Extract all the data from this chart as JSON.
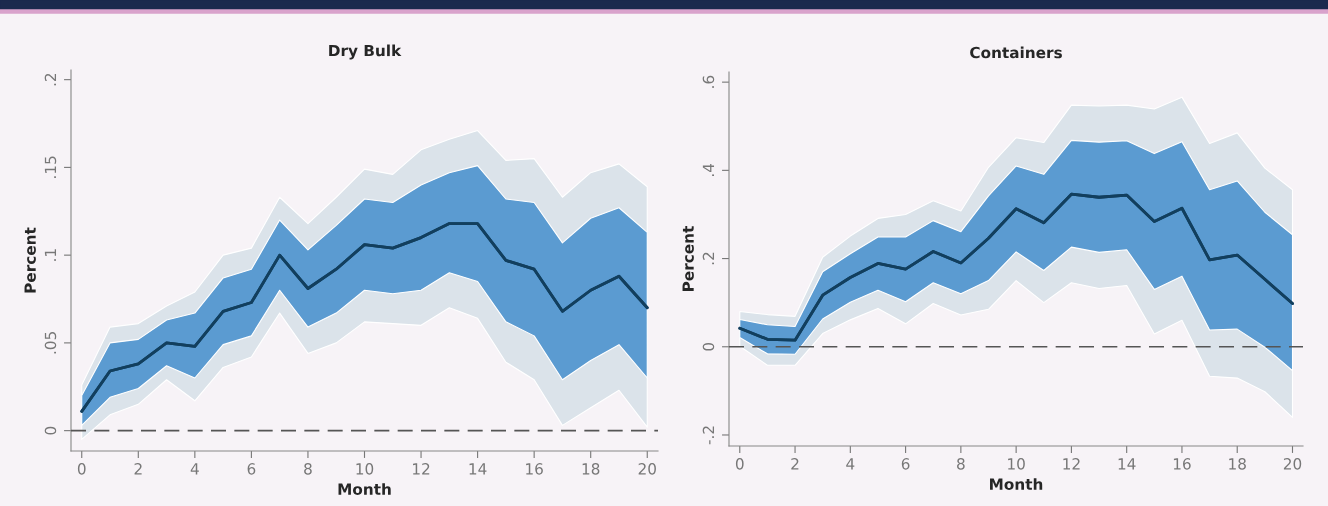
{
  "chart_data": [
    {
      "type": "line",
      "title": "Dry Bulk",
      "xlabel": "Month",
      "ylabel": "Percent",
      "x": [
        0,
        1,
        2,
        3,
        4,
        5,
        6,
        7,
        8,
        9,
        10,
        11,
        12,
        13,
        14,
        15,
        16,
        17,
        18,
        19,
        20
      ],
      "series": [
        {
          "color": "#123f5e",
          "values": [
            0.011,
            0.034,
            0.038,
            0.05,
            0.048,
            0.068,
            0.073,
            0.1,
            0.081,
            0.092,
            0.106,
            0.104,
            0.11,
            0.118,
            0.118,
            0.097,
            0.092,
            0.068,
            0.08,
            0.088,
            0.07
          ],
          "lower": [
            -0.005,
            0.009,
            0.015,
            0.029,
            0.017,
            0.036,
            0.042,
            0.067,
            0.044,
            0.05,
            0.062,
            0.061,
            0.06,
            0.07,
            0.064,
            0.039,
            0.029,
            0.003,
            0.013,
            0.023,
            0.002
          ],
          "upper": [
            0.026,
            0.059,
            0.061,
            0.071,
            0.079,
            0.1,
            0.104,
            0.133,
            0.118,
            0.133,
            0.149,
            0.146,
            0.16,
            0.166,
            0.171,
            0.154,
            0.155,
            0.133,
            0.147,
            0.152,
            0.139
          ]
        },
        {
          "color": "#123f5e",
          "values": [
            0.011,
            0.034,
            0.038,
            0.05,
            0.048,
            0.068,
            0.073,
            0.1,
            0.081,
            0.092,
            0.106,
            0.104,
            0.11,
            0.118,
            0.118,
            0.097,
            0.092,
            0.068,
            0.08,
            0.088,
            0.07
          ],
          "lower": [
            0.003,
            0.019,
            0.024,
            0.037,
            0.03,
            0.049,
            0.054,
            0.08,
            0.059,
            0.067,
            0.08,
            0.078,
            0.08,
            0.09,
            0.085,
            0.062,
            0.054,
            0.029,
            0.04,
            0.049,
            0.03
          ],
          "upper": [
            0.02,
            0.05,
            0.052,
            0.063,
            0.067,
            0.087,
            0.092,
            0.12,
            0.103,
            0.117,
            0.132,
            0.13,
            0.14,
            0.147,
            0.151,
            0.132,
            0.13,
            0.107,
            0.121,
            0.127,
            0.113
          ]
        }
      ],
      "xlim": [
        -0.38,
        20.38
      ],
      "xticks": [
        0,
        2,
        4,
        6,
        8,
        10,
        12,
        14,
        16,
        18,
        20
      ],
      "ylim": [
        -0.0116,
        0.2055
      ],
      "yticks": [
        0,
        {
          "value": 0.05,
          "label": ".05"
        },
        {
          "value": 0.1,
          "label": ".1"
        },
        {
          "value": 0.15,
          "label": ".15"
        },
        {
          "value": 0.2,
          "label": ".2"
        }
      ],
      "ref_lines": [
        {
          "axis": "y",
          "value": 0,
          "color": "#555555",
          "line_style": "dashed"
        }
      ],
      "grid": false,
      "legend": false
    },
    {
      "type": "line",
      "title": "Containers",
      "xlabel": "Month",
      "ylabel": "Percent",
      "x": [
        0,
        1,
        2,
        3,
        4,
        5,
        6,
        7,
        8,
        9,
        10,
        11,
        12,
        13,
        14,
        15,
        16,
        17,
        18,
        19,
        20
      ],
      "series": [
        {
          "color": "#123f5e",
          "values": [
            0.042,
            0.017,
            0.015,
            0.117,
            0.157,
            0.189,
            0.176,
            0.216,
            0.19,
            0.246,
            0.313,
            0.281,
            0.346,
            0.339,
            0.344,
            0.284,
            0.314,
            0.197,
            0.208,
            0.153,
            0.098
          ],
          "lower": [
            0.001,
            -0.042,
            -0.042,
            0.03,
            0.061,
            0.087,
            0.052,
            0.098,
            0.072,
            0.085,
            0.15,
            0.1,
            0.145,
            0.132,
            0.139,
            0.029,
            0.06,
            -0.067,
            -0.071,
            -0.102,
            -0.16
          ],
          "upper": [
            0.08,
            0.073,
            0.069,
            0.203,
            0.251,
            0.291,
            0.3,
            0.331,
            0.308,
            0.407,
            0.474,
            0.463,
            0.548,
            0.546,
            0.548,
            0.539,
            0.566,
            0.461,
            0.485,
            0.405,
            0.356
          ]
        },
        {
          "color": "#123f5e",
          "values": [
            0.042,
            0.017,
            0.015,
            0.117,
            0.157,
            0.189,
            0.176,
            0.216,
            0.19,
            0.246,
            0.313,
            0.281,
            0.346,
            0.339,
            0.344,
            0.284,
            0.314,
            0.197,
            0.208,
            0.153,
            0.098
          ],
          "lower": [
            0.021,
            -0.016,
            -0.017,
            0.063,
            0.101,
            0.128,
            0.102,
            0.145,
            0.12,
            0.15,
            0.215,
            0.173,
            0.226,
            0.214,
            0.22,
            0.13,
            0.16,
            0.038,
            0.04,
            -0.001,
            -0.054
          ],
          "upper": [
            0.062,
            0.05,
            0.046,
            0.17,
            0.211,
            0.249,
            0.249,
            0.286,
            0.261,
            0.342,
            0.41,
            0.391,
            0.468,
            0.464,
            0.467,
            0.438,
            0.465,
            0.356,
            0.376,
            0.305,
            0.254
          ]
        }
      ],
      "xlim": [
        -0.39,
        20.38
      ],
      "xticks": [
        0,
        2,
        4,
        6,
        8,
        10,
        12,
        14,
        16,
        18,
        20
      ],
      "ylim": [
        -0.225,
        0.623
      ],
      "yticks": [
        {
          "value": -0.2,
          "label": "-.2"
        },
        0,
        {
          "value": 0.2,
          "label": ".2"
        },
        {
          "value": 0.4,
          "label": ".4"
        },
        {
          "value": 0.6,
          "label": ".6"
        }
      ],
      "ref_lines": [
        {
          "axis": "y",
          "value": 0,
          "color": "#555555",
          "line_style": "dashed"
        }
      ],
      "grid": false,
      "legend": false
    }
  ]
}
